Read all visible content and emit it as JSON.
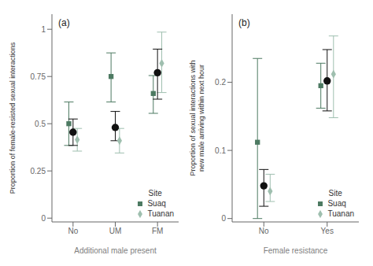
{
  "chart_data": [
    {
      "type": "scatter",
      "title": "(a)",
      "x_label": "Additional male present",
      "y_label": "Proportion of female-resisted sexual interactions",
      "categories": [
        "No",
        "UM",
        "FM"
      ],
      "ylim": [
        -0.02,
        1.08
      ],
      "yticks": [
        0,
        0.25,
        0.5,
        0.75,
        1
      ],
      "grid": false,
      "legend": "lower right",
      "legend_title": "Site",
      "series": [
        {
          "name": "Suaq",
          "color": "#4d7a62",
          "marker": "square",
          "values": [
            0.5,
            0.75,
            0.66
          ],
          "ci_low": [
            0.385,
            0.615,
            0.555
          ],
          "ci_high": [
            0.615,
            0.875,
            0.755
          ]
        },
        {
          "name": "Tuanan",
          "color": "#9fbfaf",
          "marker": "diamond",
          "values": [
            0.415,
            0.41,
            0.82
          ],
          "ci_low": [
            0.355,
            0.345,
            0.665
          ],
          "ci_high": [
            0.475,
            0.475,
            0.985
          ]
        },
        {
          "color": "#111111",
          "marker": "circle",
          "values": [
            0.455,
            0.48,
            0.77
          ],
          "ci_low": [
            0.385,
            0.41,
            0.63
          ],
          "ci_high": [
            0.525,
            0.565,
            0.895
          ]
        }
      ]
    },
    {
      "type": "scatter",
      "title": "(b)",
      "x_label": "Female resistance",
      "y_label": "Proportion of sexual interactions with\nnew male arriving within next hour",
      "categories": [
        "No",
        "Yes"
      ],
      "ylim": [
        -0.005,
        0.3
      ],
      "yticks": [
        0,
        0.1,
        0.2
      ],
      "grid": false,
      "legend": "lower right",
      "legend_title": "Site",
      "series": [
        {
          "name": "Suaq",
          "color": "#4d7a62",
          "marker": "square",
          "values": [
            0.112,
            0.195
          ],
          "ci_low": [
            0.0,
            0.162
          ],
          "ci_high": [
            0.235,
            0.228
          ]
        },
        {
          "name": "Tuanan",
          "color": "#9fbfaf",
          "marker": "diamond",
          "values": [
            0.04,
            0.212
          ],
          "ci_low": [
            0.025,
            0.148
          ],
          "ci_high": [
            0.065,
            0.268
          ]
        },
        {
          "color": "#111111",
          "marker": "circle",
          "values": [
            0.048,
            0.202
          ],
          "ci_low": [
            0.018,
            0.158
          ],
          "ci_high": [
            0.072,
            0.248
          ]
        }
      ]
    }
  ]
}
